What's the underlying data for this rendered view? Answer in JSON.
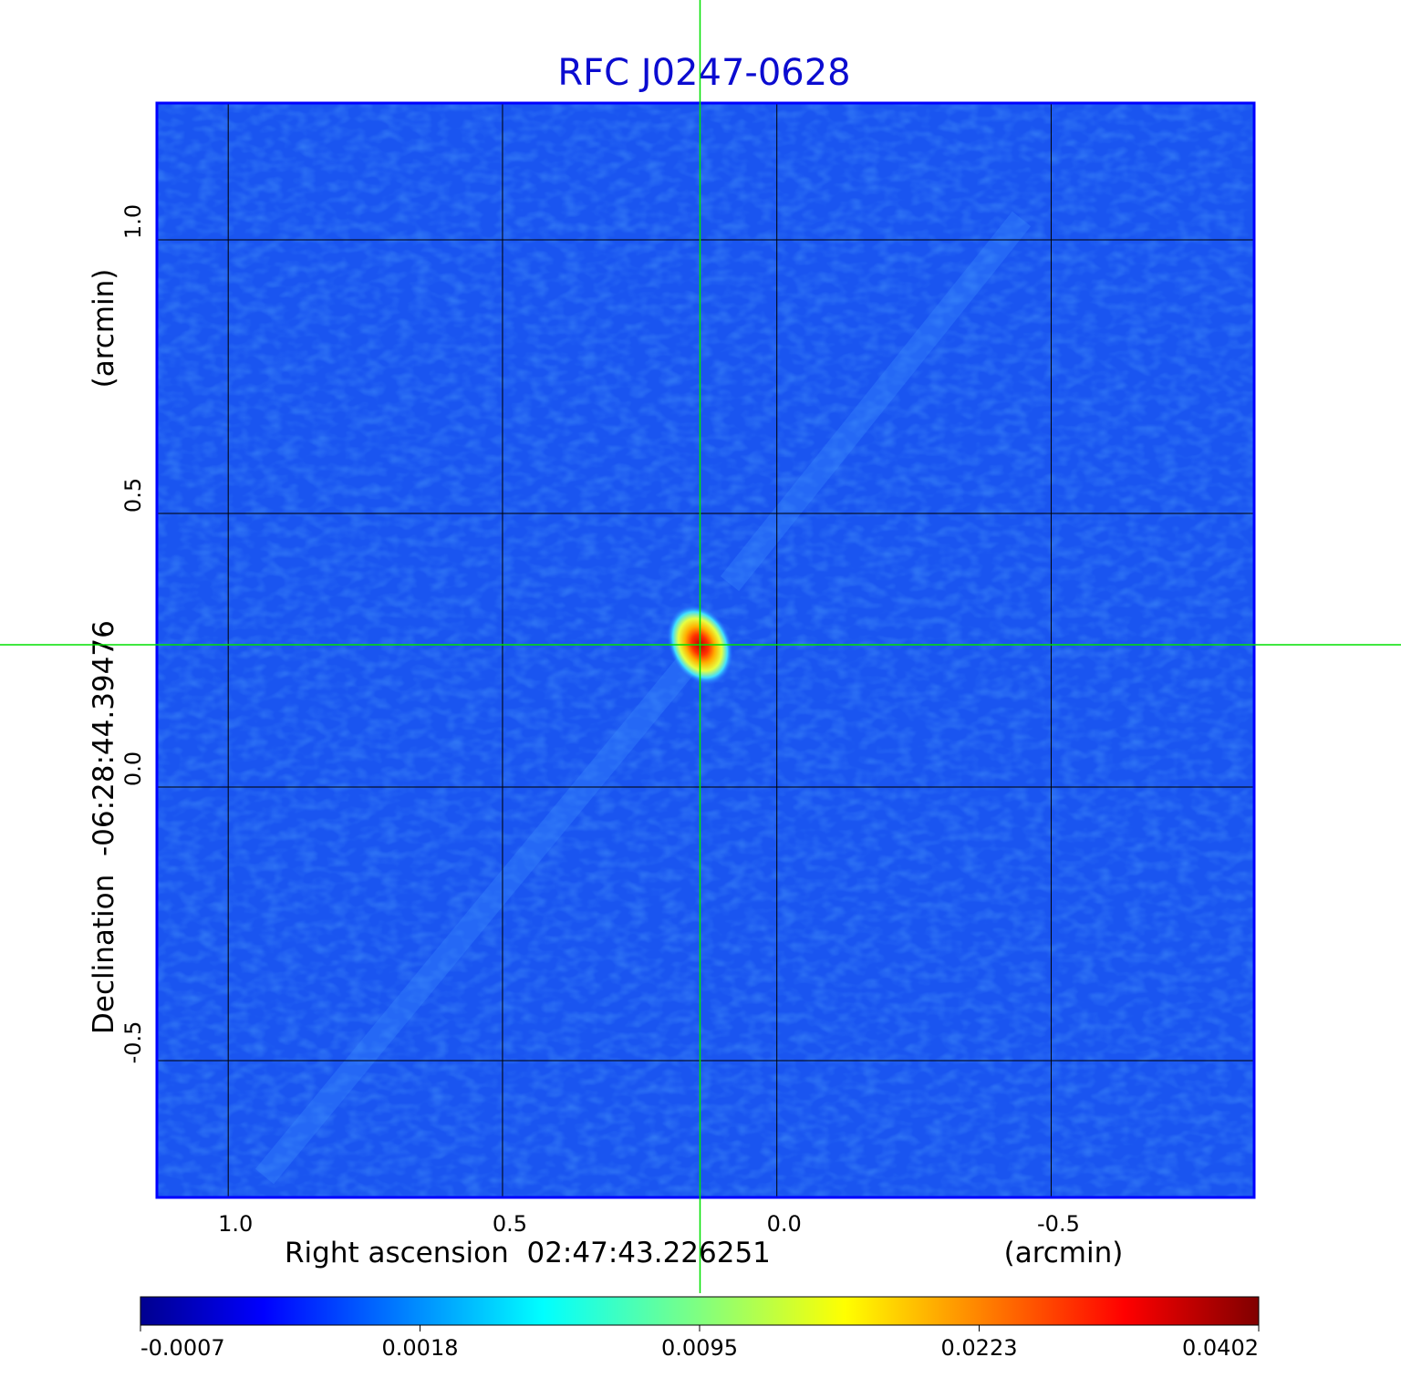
{
  "chart_data": {
    "type": "heatmap",
    "title": "RFC J0247-0628",
    "xlabel": "Right ascension  02:47:43.226251",
    "xunit": "(arcmin)",
    "ylabel": "Declination  -06:28:44.39476",
    "yunit": "(arcmin)",
    "x_ticks": [
      {
        "value": 1.0,
        "label": "1.0"
      },
      {
        "value": 0.5,
        "label": "0.5"
      },
      {
        "value": 0.0,
        "label": "0.0"
      },
      {
        "value": -0.5,
        "label": "-0.5"
      }
    ],
    "y_ticks": [
      {
        "value": 1.0,
        "label": "1.0"
      },
      {
        "value": 0.5,
        "label": "0.5"
      },
      {
        "value": 0.0,
        "label": "0.0"
      },
      {
        "value": -0.5,
        "label": "-0.5"
      }
    ],
    "xlim": [
      1.13,
      -0.87
    ],
    "ylim": [
      -0.75,
      1.25
    ],
    "x_reversed": true,
    "grid": true,
    "colormap": "jet",
    "colorbar_ticks": [
      "-0.0007",
      "0.0018",
      "0.0095",
      "0.0223",
      "0.0402"
    ],
    "colorbar_range": [
      -0.0007,
      0.0402
    ],
    "peak": {
      "x": 0.14,
      "y": 0.26,
      "value": 0.0402
    },
    "crosshair": {
      "x": 0.14,
      "y": 0.26
    },
    "crosshair_color": "#00e000",
    "frame_color": "#0000ff"
  }
}
